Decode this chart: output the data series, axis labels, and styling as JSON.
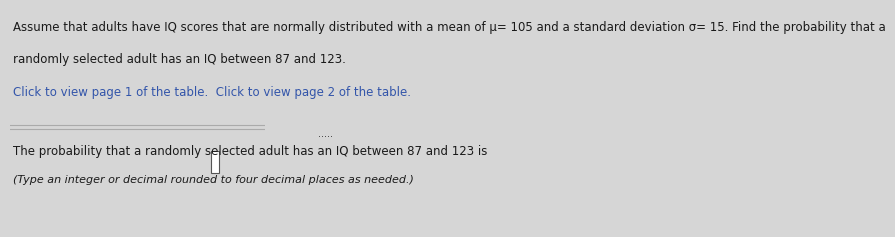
{
  "background_color": "#d6d6d6",
  "panel_color": "#e8e8e8",
  "line1": "Assume that adults have IQ scores that are normally distributed with a mean of μ= 105 and a standard deviation σ= 15. Find the probability that a",
  "line2": "randomly selected adult has an IQ between 87 and 123.",
  "link_text": "Click to view page 1 of the table.  Click to view page 2 of the table.",
  "separator_button_text": ".....",
  "answer_line1": "The probability that a randomly selected adult has an IQ between 87 and 123 is ",
  "answer_line2": "(Type an integer or decimal rounded to four decimal places as needed.)",
  "text_color": "#1a1a1a",
  "link_color": "#3355aa",
  "font_size_main": 8.5,
  "font_size_link": 8.5,
  "font_size_answer": 8.5
}
